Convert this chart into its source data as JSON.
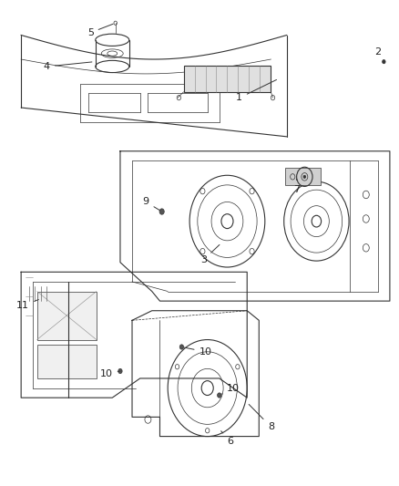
{
  "title": "",
  "background_color": "#ffffff",
  "figure_width": 4.38,
  "figure_height": 5.33,
  "dpi": 100,
  "line_color": "#333333",
  "text_color": "#222222",
  "font_size": 8
}
